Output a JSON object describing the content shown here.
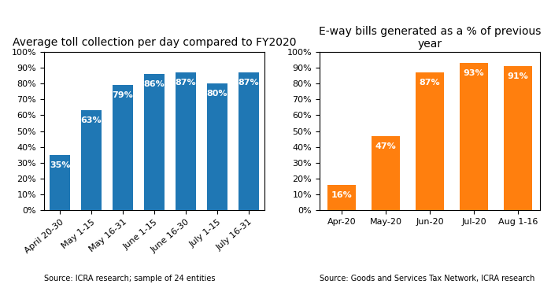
{
  "chart_data": [
    {
      "type": "bar",
      "title": "Average toll collection per day compared to FY2020",
      "categories": [
        "April 20-30",
        "May 1-15",
        "May 16-31",
        "June 1-15",
        "June 16-30",
        "July 1-15",
        "July 16-31"
      ],
      "values": [
        35,
        63,
        79,
        86,
        87,
        80,
        87
      ],
      "value_labels": [
        "35%",
        "63%",
        "79%",
        "86%",
        "87%",
        "80%",
        "87%"
      ],
      "data_labels": true,
      "ylim": [
        0,
        100
      ],
      "yticks": [
        {
          "value": 0,
          "label": "0%"
        },
        {
          "value": 10,
          "label": "10%"
        },
        {
          "value": 20,
          "label": "20%"
        },
        {
          "value": 30,
          "label": "30%"
        },
        {
          "value": 40,
          "label": "40%"
        },
        {
          "value": 50,
          "label": "50%"
        },
        {
          "value": 60,
          "label": "60%"
        },
        {
          "value": 70,
          "label": "70%"
        },
        {
          "value": 80,
          "label": "80%"
        },
        {
          "value": 90,
          "label": "90%"
        },
        {
          "value": 100,
          "label": "100%"
        }
      ],
      "grid": false,
      "annotations": [
        "Source: ICRA research; sample of 24 entities"
      ]
    },
    {
      "type": "bar",
      "title": "E-way bills generated as a % of previous year",
      "categories": [
        "Apr-20",
        "May-20",
        "Jun-20",
        "Jul-20",
        "Aug 1-16"
      ],
      "values": [
        16,
        47,
        87,
        93,
        91
      ],
      "value_labels": [
        "16%",
        "47%",
        "87%",
        "93%",
        "91%"
      ],
      "data_labels": true,
      "ylim": [
        0,
        100
      ],
      "yticks": [
        {
          "value": 0,
          "label": "0%"
        },
        {
          "value": 10,
          "label": "10%"
        },
        {
          "value": 20,
          "label": "20%"
        },
        {
          "value": 30,
          "label": "30%"
        },
        {
          "value": 40,
          "label": "40%"
        },
        {
          "value": 50,
          "label": "50%"
        },
        {
          "value": 60,
          "label": "60%"
        },
        {
          "value": 70,
          "label": "70%"
        },
        {
          "value": 80,
          "label": "80%"
        },
        {
          "value": 90,
          "label": "90%"
        },
        {
          "value": 100,
          "label": "100%"
        }
      ],
      "grid": false,
      "annotations": [
        "Source: Goods and Services Tax Network, ICRA research"
      ]
    }
  ]
}
